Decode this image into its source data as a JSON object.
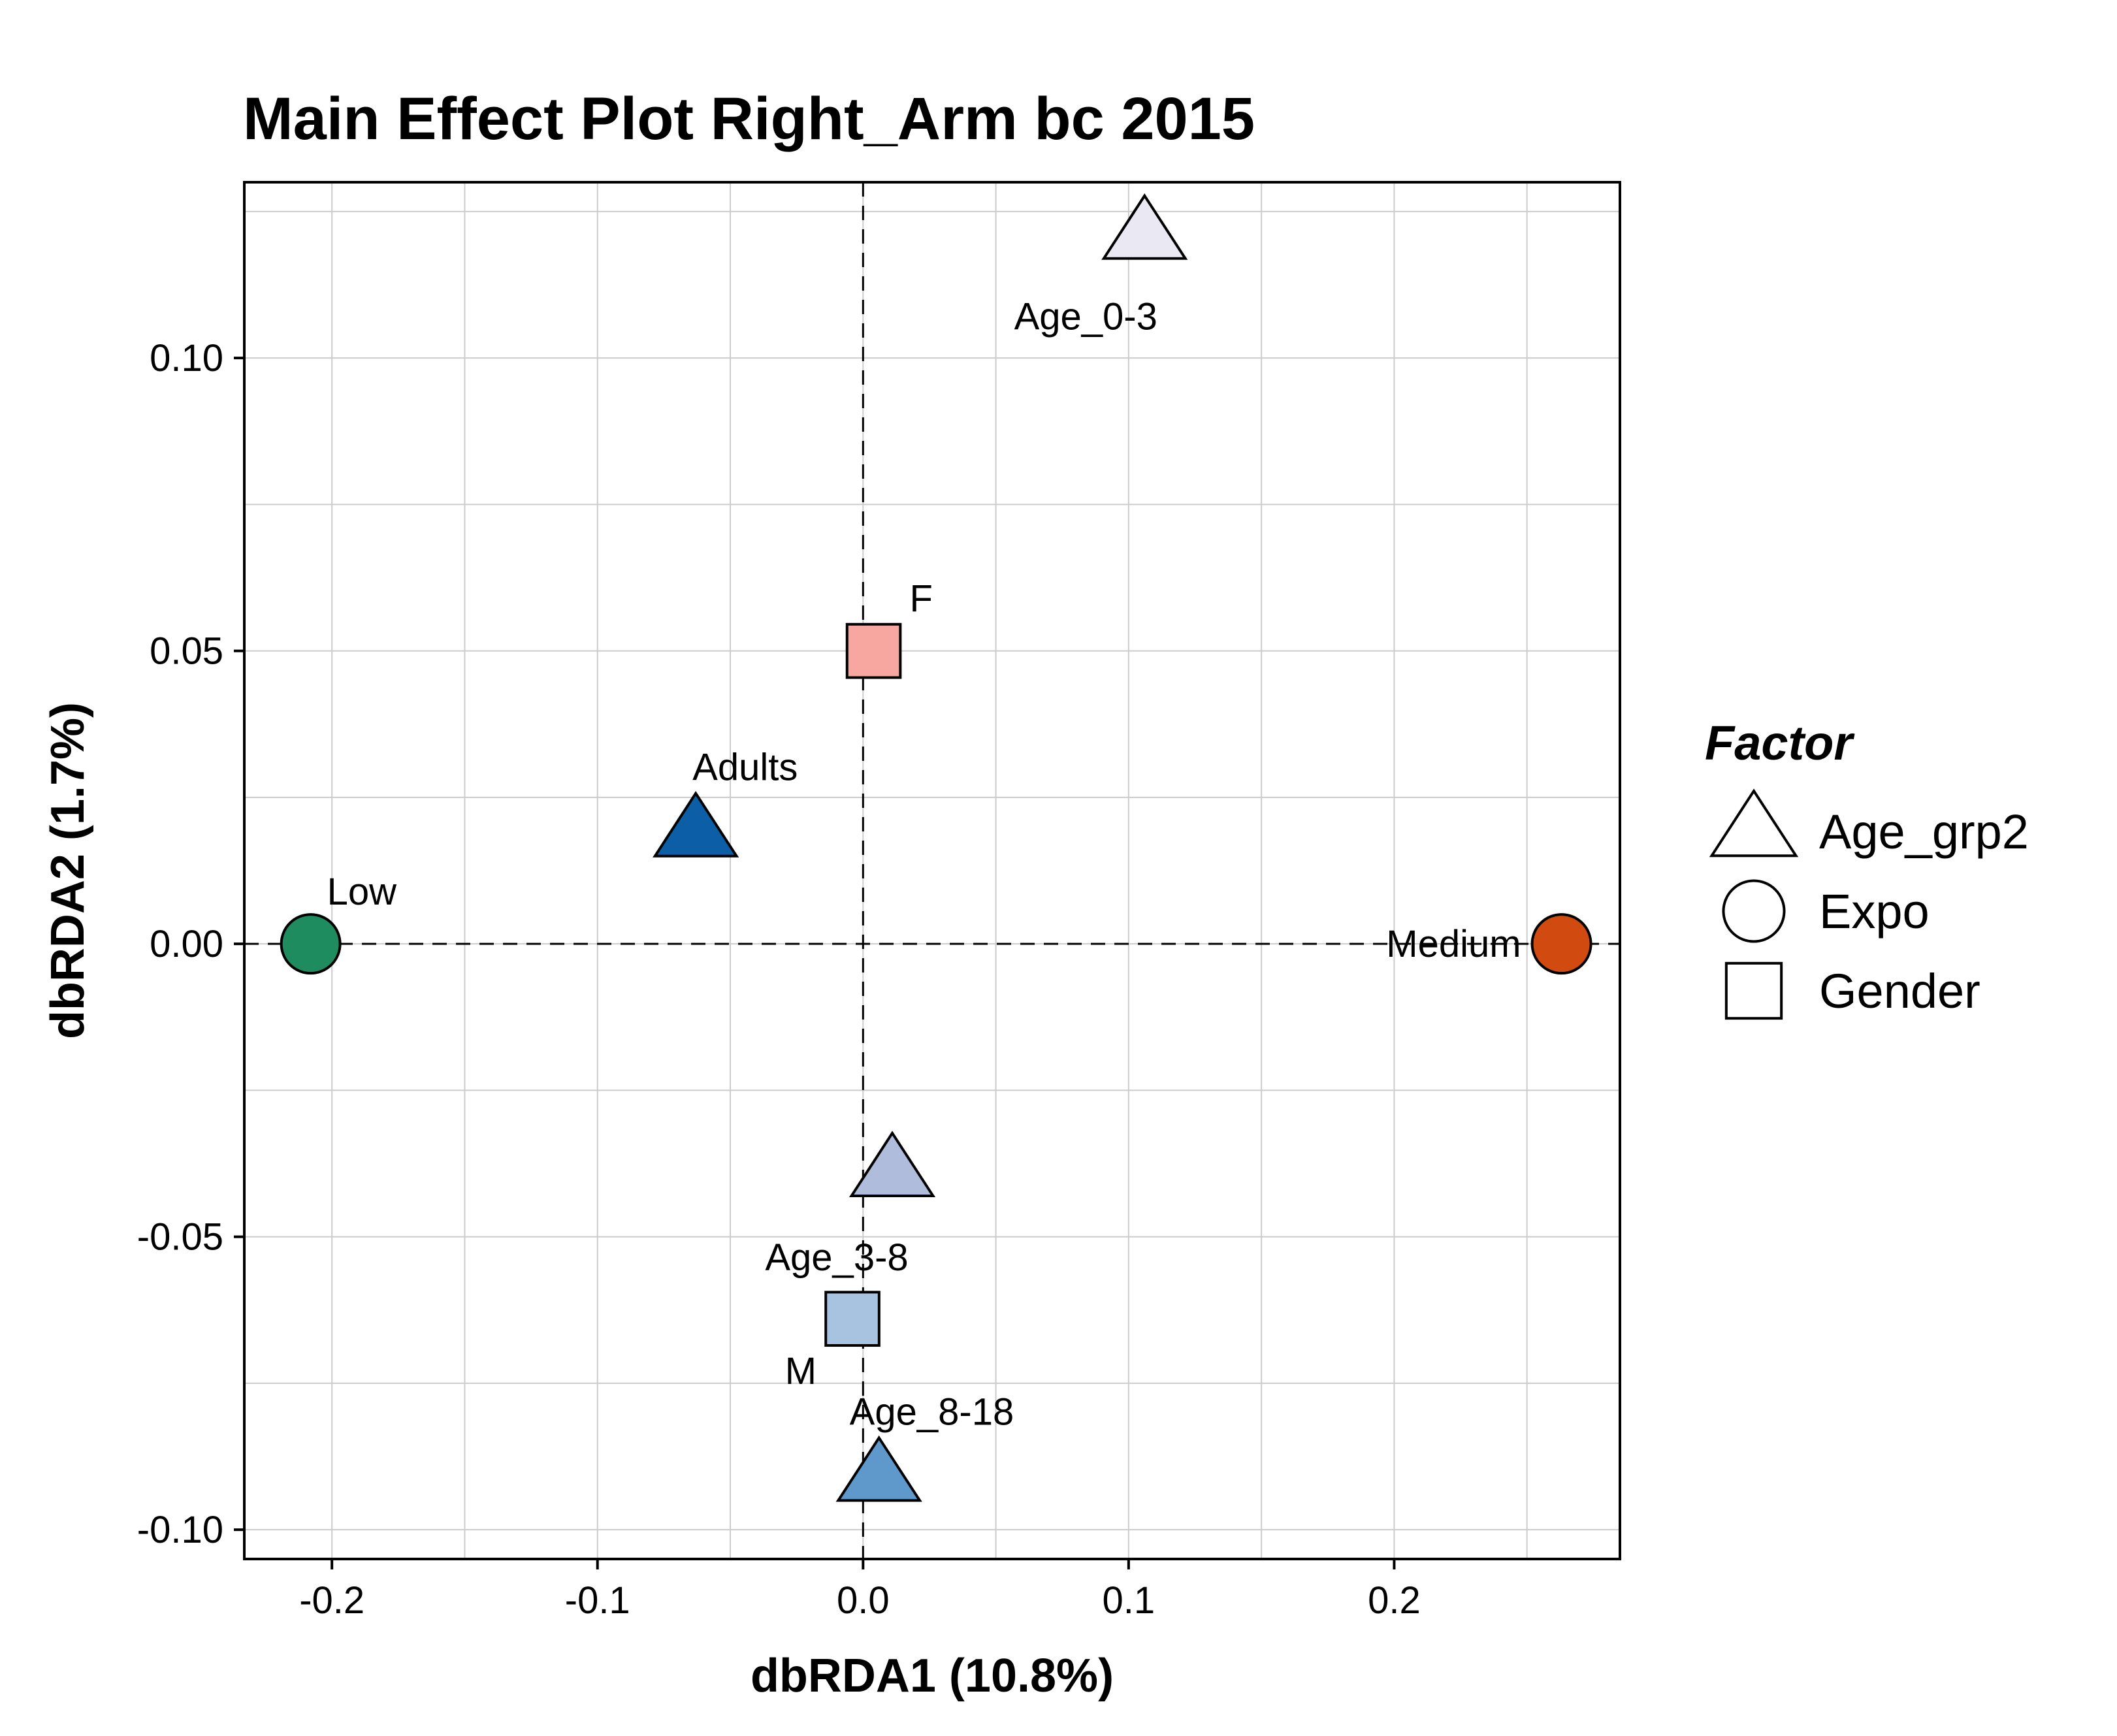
{
  "chart_data": {
    "type": "scatter",
    "title": "Main Effect Plot Right_Arm bc 2015",
    "xlabel": "dbRDA1 (10.8%)",
    "ylabel": "dbRDA2 (1.7%)",
    "xlim": [
      -0.233,
      0.285
    ],
    "ylim": [
      -0.105,
      0.13
    ],
    "x_ticks": [
      {
        "value": -0.2,
        "label": "-0.2"
      },
      {
        "value": -0.1,
        "label": "-0.1"
      },
      {
        "value": 0.0,
        "label": "0.0"
      },
      {
        "value": 0.1,
        "label": "0.1"
      },
      {
        "value": 0.2,
        "label": "0.2"
      }
    ],
    "y_ticks": [
      {
        "value": -0.1,
        "label": "-0.10"
      },
      {
        "value": -0.05,
        "label": "-0.05"
      },
      {
        "value": 0.0,
        "label": "0.00"
      },
      {
        "value": 0.05,
        "label": "0.05"
      },
      {
        "value": 0.1,
        "label": "0.10"
      }
    ],
    "grid": true,
    "reference_lines": {
      "x": 0,
      "y": 0
    },
    "legend": {
      "title": "Factor",
      "position": "right",
      "entries": [
        {
          "label": "Age_grp2",
          "shape": "triangle"
        },
        {
          "label": "Expo",
          "shape": "circle"
        },
        {
          "label": "Gender",
          "shape": "square"
        }
      ]
    },
    "points": [
      {
        "label": "Age_0-3",
        "factor": "Age_grp2",
        "shape": "triangle",
        "x": 0.106,
        "y": 0.121,
        "color": "#eae8f3",
        "label_pos": "below-left"
      },
      {
        "label": "F",
        "factor": "Gender",
        "shape": "square",
        "x": 0.004,
        "y": 0.05,
        "color": "#f7a6a0",
        "label_pos": "above-right"
      },
      {
        "label": "Adults",
        "factor": "Age_grp2",
        "shape": "triangle",
        "x": -0.063,
        "y": 0.019,
        "color": "#0c5ea6",
        "label_pos": "above-right"
      },
      {
        "label": "Low",
        "factor": "Expo",
        "shape": "circle",
        "x": -0.208,
        "y": 0.0,
        "color": "#1e8c5e",
        "label_pos": "above-right"
      },
      {
        "label": "Medium",
        "factor": "Expo",
        "shape": "circle",
        "x": 0.263,
        "y": 0.0,
        "color": "#d14b10",
        "label_pos": "left"
      },
      {
        "label": "Age_3-8",
        "factor": "Age_grp2",
        "shape": "triangle",
        "x": 0.011,
        "y": -0.039,
        "color": "#b0bcdb",
        "label_pos": "below-left"
      },
      {
        "label": "M",
        "factor": "Gender",
        "shape": "square",
        "x": -0.004,
        "y": -0.064,
        "color": "#a8c3e0",
        "label_pos": "below-left"
      },
      {
        "label": "Age_8-18",
        "factor": "Age_grp2",
        "shape": "triangle",
        "x": 0.006,
        "y": -0.091,
        "color": "#5f98cb",
        "label_pos": "above-right"
      }
    ]
  }
}
